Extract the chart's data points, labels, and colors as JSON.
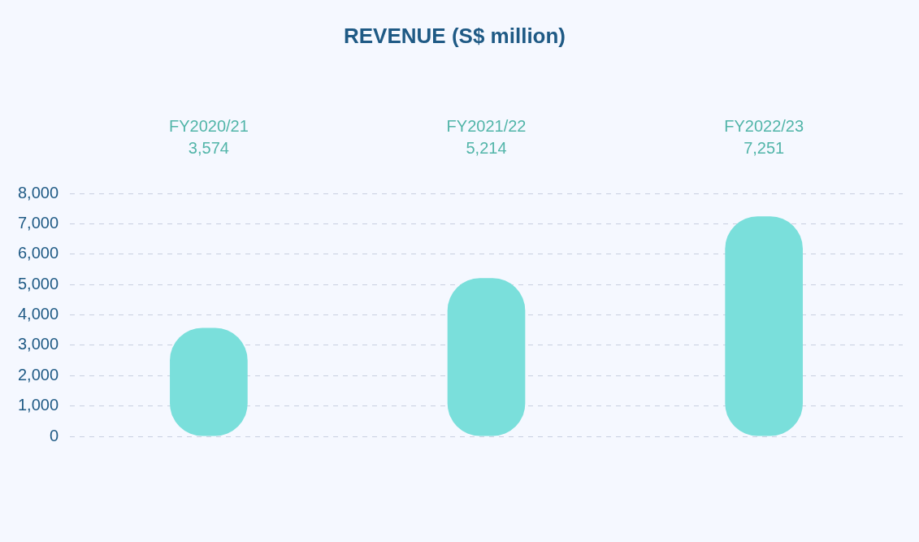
{
  "chart_data": {
    "type": "bar",
    "title": "REVENUE (S$ million)",
    "categories": [
      "FY2020/21",
      "FY2021/22",
      "FY2022/23"
    ],
    "values": [
      3574,
      5214,
      7251
    ],
    "color": "#7adfdb",
    "value_labels": [
      "3,574",
      "5,214",
      "7,251"
    ],
    "ylim": [
      0,
      8000
    ],
    "yticks": [
      {
        "value": 0,
        "label": "0"
      },
      {
        "value": 1000,
        "label": "1,000"
      },
      {
        "value": 2000,
        "label": "2,000"
      },
      {
        "value": 3000,
        "label": "3,000"
      },
      {
        "value": 4000,
        "label": "4,000"
      },
      {
        "value": 5000,
        "label": "5,000"
      },
      {
        "value": 6000,
        "label": "6,000"
      },
      {
        "value": 7000,
        "label": "7,000"
      },
      {
        "value": 8000,
        "label": "8,000"
      }
    ],
    "grid": "y",
    "legend": false
  }
}
